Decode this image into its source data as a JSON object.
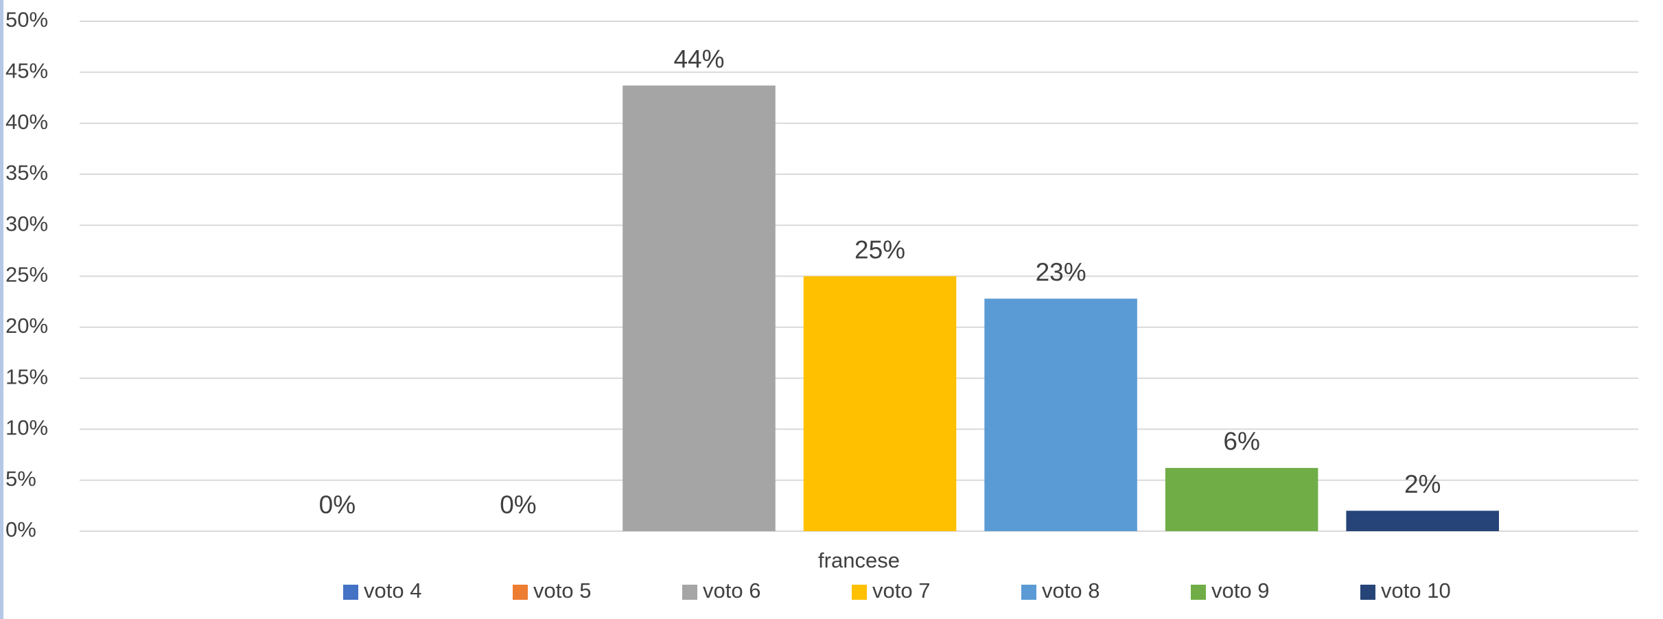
{
  "chart_data": {
    "type": "bar",
    "categories": [
      "francese"
    ],
    "series": [
      {
        "name": "voto 4",
        "color": "#4472c4",
        "values": [
          0
        ],
        "value_labels": [
          "0%"
        ]
      },
      {
        "name": "voto 5",
        "color": "#ed7d31",
        "values": [
          0
        ],
        "value_labels": [
          "0%"
        ]
      },
      {
        "name": "voto 6",
        "color": "#a5a5a5",
        "values": [
          43.7
        ],
        "value_labels": [
          "44%"
        ]
      },
      {
        "name": "voto 7",
        "color": "#ffc000",
        "values": [
          25
        ],
        "value_labels": [
          "25%"
        ]
      },
      {
        "name": "voto 8",
        "color": "#5b9bd5",
        "values": [
          22.8
        ],
        "value_labels": [
          "23%"
        ]
      },
      {
        "name": "voto 9",
        "color": "#70ad47",
        "values": [
          6.2
        ],
        "value_labels": [
          "6%"
        ]
      },
      {
        "name": "voto 10",
        "color": "#264478",
        "values": [
          2
        ],
        "value_labels": [
          "2%"
        ]
      }
    ],
    "ylim": [
      0,
      50
    ],
    "yticks": [
      {
        "value": 0,
        "label": "0%"
      },
      {
        "value": 5,
        "label": "5%"
      },
      {
        "value": 10,
        "label": "10%"
      },
      {
        "value": 15,
        "label": "15%"
      },
      {
        "value": 20,
        "label": "20%"
      },
      {
        "value": 25,
        "label": "25%"
      },
      {
        "value": 30,
        "label": "30%"
      },
      {
        "value": 35,
        "label": "35%"
      },
      {
        "value": 40,
        "label": "40%"
      },
      {
        "value": 45,
        "label": "45%"
      },
      {
        "value": 50,
        "label": "50%"
      }
    ],
    "grid": true,
    "legend": "bottom"
  }
}
